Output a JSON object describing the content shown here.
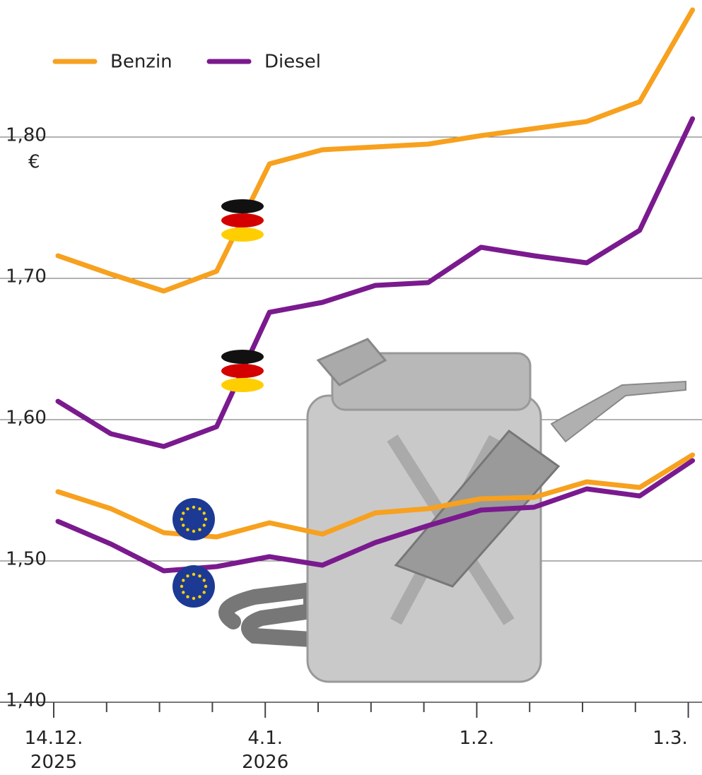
{
  "chart_data": {
    "type": "line",
    "categories": [
      "14.12. 2025",
      null,
      null,
      null,
      "4.1. 2026",
      null,
      null,
      null,
      "1.2.",
      null,
      null,
      null,
      "1.3."
    ],
    "series": [
      {
        "name": "Benzin",
        "color": "#f7a11f",
        "values": [
          1.716,
          1.703,
          1.691,
          1.705,
          1.781,
          1.791,
          1.793,
          1.795,
          1.801,
          1.806,
          1.811,
          1.825,
          1.89
        ]
      },
      {
        "name": "Diesel",
        "color": "#7a1a8e",
        "values": [
          1.613,
          1.59,
          1.581,
          1.595,
          1.676,
          1.683,
          1.695,
          1.697,
          1.722,
          1.716,
          1.711,
          1.734,
          1.813
        ]
      }
    ],
    "eu_series": [
      {
        "color": "#f7a11f",
        "values": [
          1.549,
          1.537,
          1.52,
          1.517,
          1.527,
          1.519,
          1.534,
          1.537,
          1.544,
          1.545,
          1.556,
          1.552,
          1.575
        ]
      },
      {
        "color": "#7a1a8e",
        "values": [
          1.528,
          1.512,
          1.493,
          1.496,
          1.503,
          1.497,
          1.513,
          1.525,
          1.536,
          1.538,
          1.551,
          1.546,
          1.571
        ]
      }
    ],
    "y_unit": "€",
    "ylim": [
      1.4,
      1.9
    ],
    "yticks": [
      {
        "value": 1.4,
        "label": "1,40"
      },
      {
        "value": 1.5,
        "label": "1,50"
      },
      {
        "value": 1.6,
        "label": "1,60"
      },
      {
        "value": 1.7,
        "label": "1,70"
      },
      {
        "value": 1.8,
        "label": "1,80"
      }
    ],
    "grid": true
  }
}
